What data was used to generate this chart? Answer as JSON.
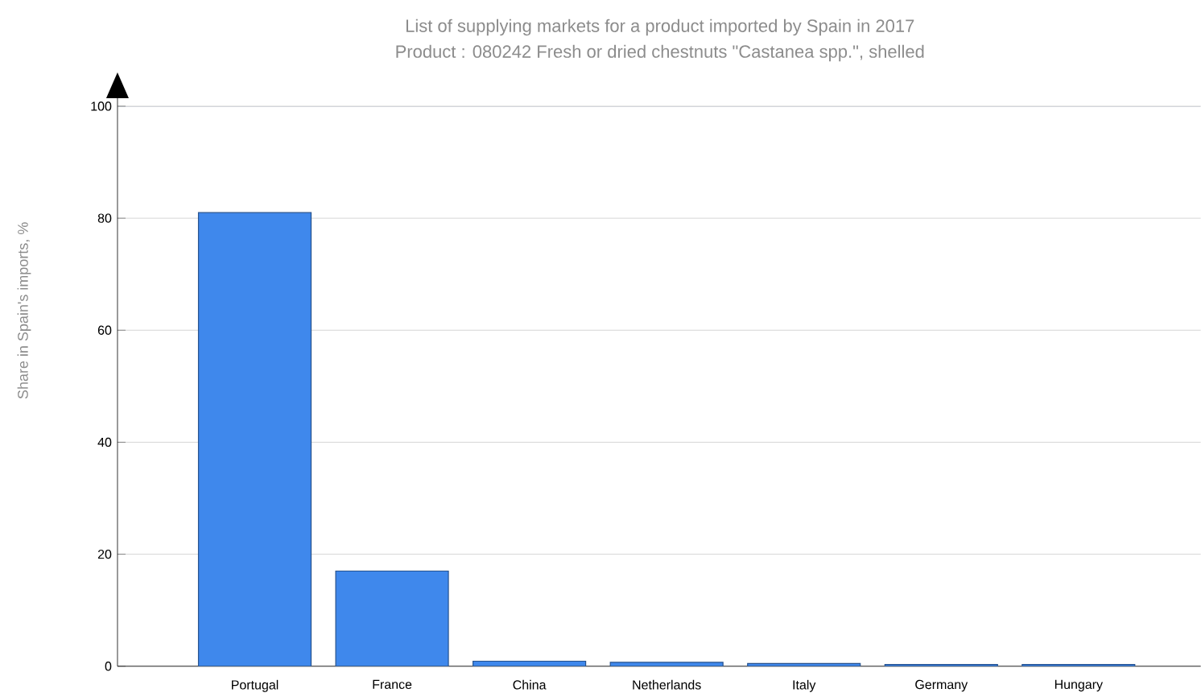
{
  "chart_data": {
    "type": "bar",
    "title": "List of supplying markets for a product imported by Spain in 2017",
    "subtitle": "Product : 080242 Fresh or dried chestnuts \"Castanea spp.\", shelled",
    "ylabel": "Share in Spain's imports, %",
    "categories": [
      "Portugal",
      "France",
      "China",
      "Netherlands",
      "Italy",
      "Germany",
      "Hungary"
    ],
    "values": [
      81.0,
      17.0,
      0.9,
      0.7,
      0.5,
      0.3,
      0.3
    ],
    "color": "#3f88ec",
    "ylim": [
      0,
      100
    ],
    "yticks": [
      0,
      20,
      40,
      60,
      80,
      100
    ],
    "grid": "y"
  }
}
